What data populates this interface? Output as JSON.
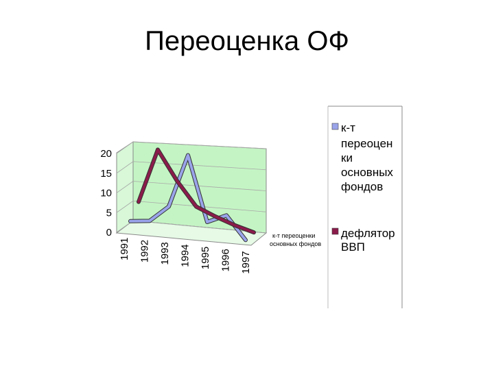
{
  "slide": {
    "title": "Переоценка ОФ"
  },
  "chart_data": {
    "type": "line",
    "categories": [
      "1991",
      "1992",
      "1993",
      "1994",
      "1995",
      "1996",
      "1997"
    ],
    "series": [
      {
        "name": "к-т переоценки основных фондов",
        "values": [
          1,
          1.5,
          5.5,
          18.5,
          2.5,
          4.5,
          -1
        ],
        "color": "#9aa4ea"
      },
      {
        "name": "дефлятор ВВП",
        "values": [
          4.5,
          18,
          10.5,
          4.5,
          2.5,
          0.8,
          -0.5
        ],
        "color": "#8a1c4a"
      }
    ],
    "yticks": [
      "20",
      "15",
      "10",
      "5",
      "0"
    ],
    "ylim": [
      0,
      20
    ],
    "grid": true,
    "wall_color": "#c4f4c4",
    "legend": {
      "placement": "right",
      "lines_series1": [
        "к-т",
        "переоцен",
        "ки",
        "основных",
        "фондов"
      ],
      "lines_series2": [
        "дефлятор",
        "ВВП"
      ]
    },
    "annotation": [
      "к-т переоценки",
      "основных фондов"
    ]
  }
}
